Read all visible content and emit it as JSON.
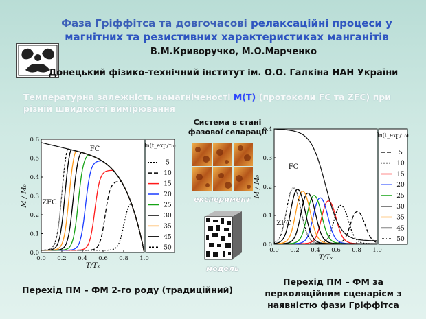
{
  "title": {
    "line1_part1": "Фаза Гріффітса та довгочасові",
    "line1_part2": " релаксаційні процеси у",
    "line2": "магнітних та резистивних характеристиках манганітів"
  },
  "authors": "В.М.Криворучко, М.О.Марченко",
  "institute": "Донецький фізико-технічний інститут ім. О.О. Галкіна НАН України",
  "description": {
    "prefix": "Температурна залежність намагніченості ",
    "mt": "M(T)",
    "suffix": " (протоколи FC та ZFC) при різній швидкості вимірювання"
  },
  "system_label": "Система в стані фазової сепарації",
  "experiment_label": "експеримент",
  "model_label": "модель",
  "caption_left": "Перехід ПМ – ФМ 2-го роду (традиційний)",
  "caption_right": "Перехід ПМ – ФМ за перколяційним сценарієм з наявністю фази Гріффітса",
  "chart_data": [
    {
      "type": "line",
      "xlabel": "T/Tₓ",
      "ylabel": "M / M₀",
      "xlim": [
        0.0,
        1.0
      ],
      "ylim": [
        0.0,
        0.6
      ],
      "x_ticks": [
        "0.0",
        "0.2",
        "0.4",
        "0.6",
        "0.8",
        "1.0"
      ],
      "y_ticks": [
        "0.0",
        "0.1",
        "0.2",
        "0.3",
        "0.4",
        "0.5",
        "0.6"
      ],
      "annotations": [
        "FC",
        "ZFC"
      ],
      "legend_title": "ln(t_exp/τ₀)",
      "legend_position": "right",
      "series": [
        {
          "name": "5",
          "color": "#000000",
          "dash": "2,2",
          "onset": 0.8
        },
        {
          "name": "10",
          "color": "#000000",
          "dash": "6,3",
          "onset": 0.62
        },
        {
          "name": "15",
          "color": "#ff1a1a",
          "dash": "",
          "onset": 0.52
        },
        {
          "name": "20",
          "color": "#1a3cff",
          "dash": "",
          "onset": 0.43
        },
        {
          "name": "25",
          "color": "#16a316",
          "dash": "",
          "onset": 0.36
        },
        {
          "name": "30",
          "color": "#000000",
          "dash": "",
          "onset": 0.31
        },
        {
          "name": "35",
          "color": "#ff9a1a",
          "dash": "",
          "onset": 0.27
        },
        {
          "name": "45",
          "color": "#000000",
          "dash": "",
          "onset": 0.23
        },
        {
          "name": "50",
          "color": "#000000",
          "dash": "1,1",
          "onset": 0.2
        }
      ]
    },
    {
      "type": "line",
      "xlabel": "T/Tₓ",
      "ylabel": "M / M₀",
      "xlim": [
        0.0,
        1.0
      ],
      "ylim": [
        0.0,
        0.4
      ],
      "x_ticks": [
        "0.0",
        "0.2",
        "0.4",
        "0.6",
        "0.8",
        "1.0"
      ],
      "y_ticks": [
        "0.0",
        "0.1",
        "0.2",
        "0.3",
        "0.4"
      ],
      "annotations": [
        "FC",
        "ZFC"
      ],
      "legend_title": "ln(t_exp/τ₀)",
      "legend_position": "right",
      "series": [
        {
          "name": "5",
          "color": "#000000",
          "dash": "6,3",
          "onset": 0.86
        },
        {
          "name": "10",
          "color": "#000000",
          "dash": "2,2",
          "onset": 0.7
        },
        {
          "name": "15",
          "color": "#ff1a1a",
          "dash": "",
          "onset": 0.58
        },
        {
          "name": "20",
          "color": "#1a3cff",
          "dash": "",
          "onset": 0.5
        },
        {
          "name": "25",
          "color": "#16a316",
          "dash": "",
          "onset": 0.44
        },
        {
          "name": "30",
          "color": "#000000",
          "dash": "",
          "onset": 0.38
        },
        {
          "name": "35",
          "color": "#ff9a1a",
          "dash": "",
          "onset": 0.33
        },
        {
          "name": "45",
          "color": "#000000",
          "dash": "",
          "onset": 0.28
        },
        {
          "name": "50",
          "color": "#000000",
          "dash": "1,1",
          "onset": 0.24
        }
      ]
    }
  ]
}
